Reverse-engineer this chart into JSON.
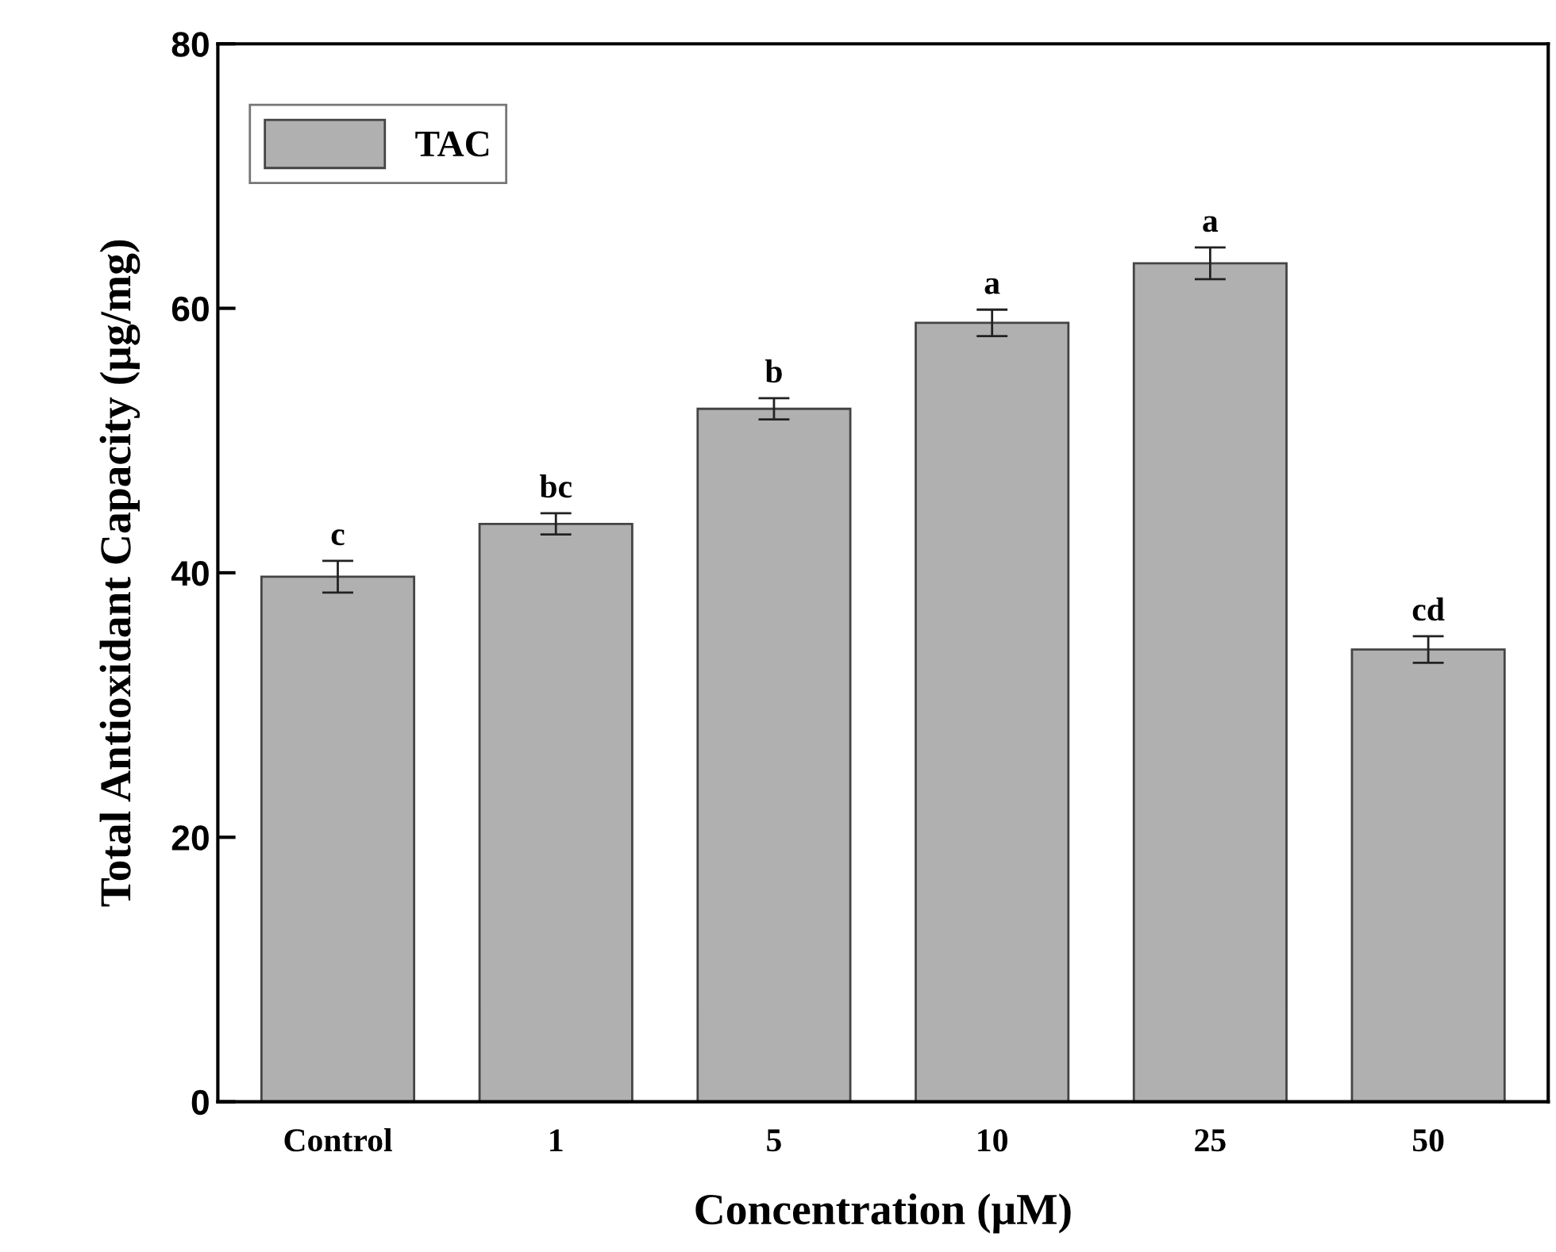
{
  "chart_data": {
    "type": "bar",
    "xlabel": "Concentration (μM)",
    "ylabel": "Total Antioxidant Capacity (μg/mg)",
    "categories": [
      "Control",
      "1",
      "5",
      "10",
      "25",
      "50"
    ],
    "series": [
      {
        "name": "TAC",
        "color": "#b0b0b0",
        "values": [
          39.7,
          43.7,
          52.4,
          58.9,
          63.4,
          34.2
        ],
        "errors": [
          1.2,
          0.8,
          0.8,
          1.0,
          1.2,
          1.0
        ]
      }
    ],
    "ylim": [
      0,
      80
    ],
    "yticks": [
      0,
      20,
      40,
      60,
      80
    ],
    "grid": false,
    "legend": "top left",
    "annotations": [
      {
        "text": "c",
        "x": "Control",
        "y": 40.9
      },
      {
        "text": "bc",
        "x": "1",
        "y": 44.5
      },
      {
        "text": "b",
        "x": "5",
        "y": 53.2
      },
      {
        "text": "a",
        "x": "10",
        "y": 59.9
      },
      {
        "text": "a",
        "x": "25",
        "y": 64.6
      },
      {
        "text": "cd",
        "x": "50",
        "y": 35.2
      }
    ]
  }
}
